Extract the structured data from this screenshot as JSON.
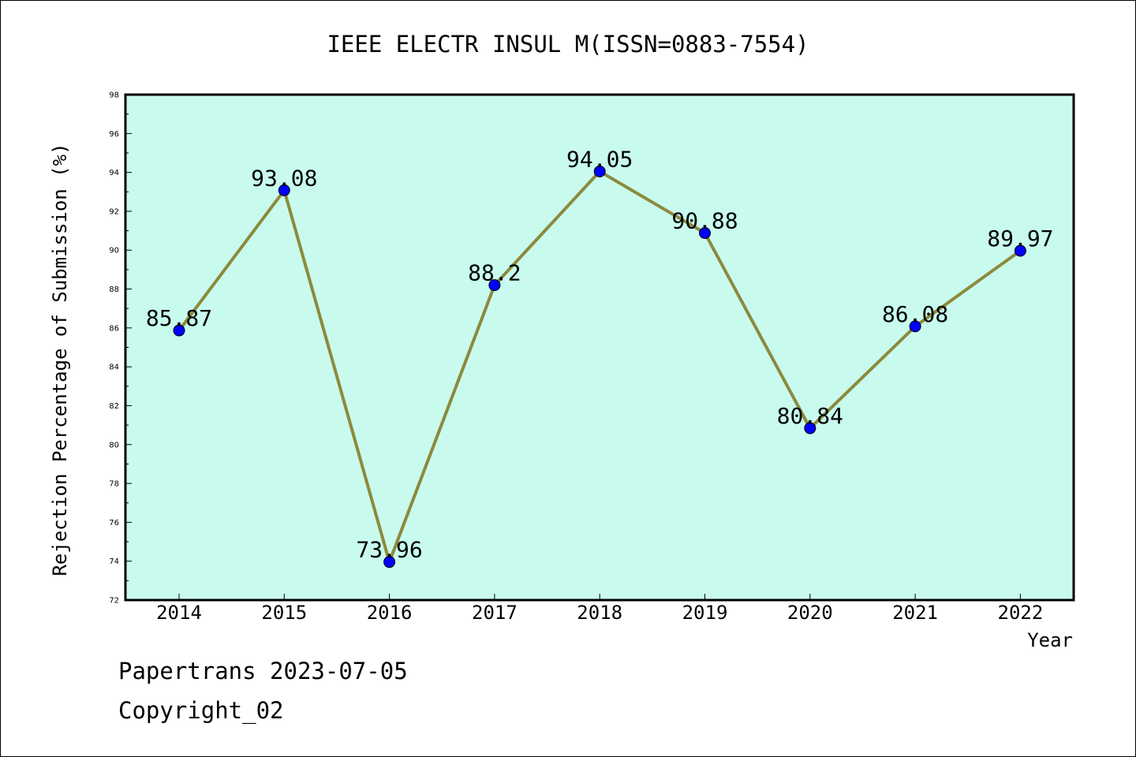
{
  "chart_data": {
    "type": "line",
    "title": "IEEE ELECTR INSUL M(ISSN=0883-7554)",
    "xlabel": "Year",
    "ylabel": "Rejection Percentage of Submission (%)",
    "categories": [
      "2014",
      "2015",
      "2016",
      "2017",
      "2018",
      "2019",
      "2020",
      "2021",
      "2022"
    ],
    "values": [
      85.87,
      93.08,
      73.96,
      88.2,
      94.05,
      90.88,
      80.84,
      86.08,
      89.97
    ],
    "data_labels": [
      "85.87",
      "93.08",
      "73.96",
      "88.2",
      "94.05",
      "90.88",
      "80.84",
      "86.08",
      "89.97"
    ],
    "ylim": [
      72,
      98
    ],
    "yticks": [
      72,
      74,
      76,
      78,
      80,
      82,
      84,
      86,
      88,
      90,
      92,
      94,
      96,
      98
    ],
    "grid": false,
    "colors": {
      "plot_background": "#c8fbee",
      "line": "#8c8a3c",
      "marker": "#0000ff"
    }
  },
  "footer": {
    "line1": "Papertrans 2023-07-05",
    "line2": "Copyright_02"
  }
}
